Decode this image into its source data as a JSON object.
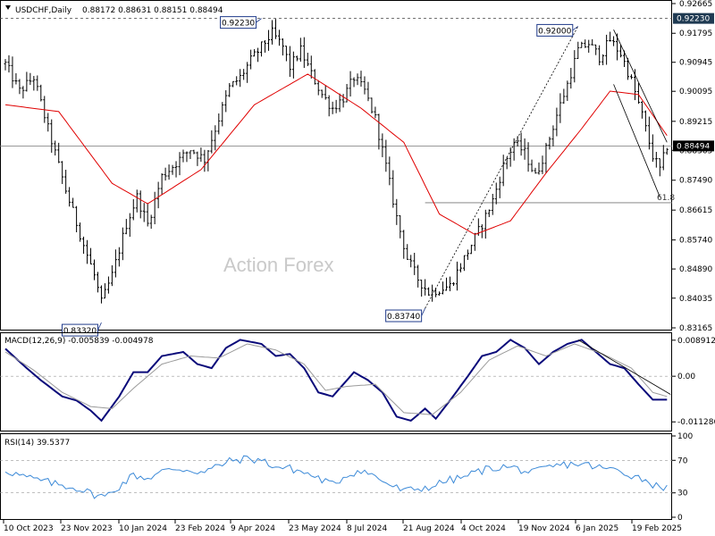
{
  "header": {
    "symbol": "USDCHF,Daily",
    "ohlc": "0.88172 0.88631 0.88151 0.88494"
  },
  "watermark": "Action Forex",
  "colors": {
    "bars": "#000000",
    "ma": "#e00000",
    "macd": "#0a0a7a",
    "signal": "#9a9a9a",
    "rsi": "#3c8ad8",
    "current_tag_bg": "#000000",
    "high_tag_bg": "#1f3a52"
  },
  "chart_data": [
    {
      "type": "candlestick",
      "title": "USDCHF,Daily",
      "ylim": [
        0.83165,
        0.92665
      ],
      "y_ticks": [
        "0.92665",
        "0.91795",
        "0.90945",
        "0.90095",
        "0.89215",
        "0.88365",
        "0.87490",
        "0.86615",
        "0.85740",
        "0.84890",
        "0.84035",
        "0.83165"
      ],
      "x_ticks": [
        "10 Oct 2023",
        "23 Nov 2023",
        "10 Jan 2024",
        "23 Feb 2024",
        "9 Apr 2024",
        "23 May 2024",
        "8 Jul 2024",
        "21 Aug 2024",
        "4 Oct 2024",
        "19 Nov 2024",
        "6 Jan 2025",
        "19 Feb 2025"
      ],
      "price_path": [
        [
          0,
          0.909
        ],
        [
          4,
          0.901
        ],
        [
          8,
          0.905
        ],
        [
          12,
          0.89
        ],
        [
          17,
          0.872
        ],
        [
          22,
          0.856
        ],
        [
          25,
          0.847
        ],
        [
          27,
          0.839
        ],
        [
          30,
          0.847
        ],
        [
          34,
          0.862
        ],
        [
          37,
          0.87
        ],
        [
          40,
          0.862
        ],
        [
          44,
          0.876
        ],
        [
          48,
          0.88
        ],
        [
          52,
          0.884
        ],
        [
          56,
          0.881
        ],
        [
          60,
          0.893
        ],
        [
          63,
          0.902
        ],
        [
          66,
          0.905
        ],
        [
          69,
          0.91
        ],
        [
          72,
          0.914
        ],
        [
          75,
          0.918
        ],
        [
          78,
          0.914
        ],
        [
          80,
          0.908
        ],
        [
          83,
          0.913
        ],
        [
          86,
          0.906
        ],
        [
          89,
          0.9
        ],
        [
          92,
          0.896
        ],
        [
          95,
          0.899
        ],
        [
          98,
          0.905
        ],
        [
          101,
          0.901
        ],
        [
          104,
          0.893
        ],
        [
          107,
          0.879
        ],
        [
          110,
          0.864
        ],
        [
          113,
          0.852
        ],
        [
          116,
          0.846
        ],
        [
          119,
          0.842
        ],
        [
          122,
          0.843
        ],
        [
          125,
          0.844
        ],
        [
          128,
          0.85
        ],
        [
          131,
          0.856
        ],
        [
          134,
          0.862
        ],
        [
          137,
          0.869
        ],
        [
          140,
          0.879
        ],
        [
          143,
          0.886
        ],
        [
          146,
          0.883
        ],
        [
          149,
          0.876
        ],
        [
          152,
          0.884
        ],
        [
          155,
          0.894
        ],
        [
          158,
          0.903
        ],
        [
          161,
          0.913
        ],
        [
          164,
          0.915
        ],
        [
          167,
          0.911
        ],
        [
          170,
          0.916
        ],
        [
          173,
          0.912
        ],
        [
          176,
          0.904
        ],
        [
          179,
          0.894
        ],
        [
          182,
          0.882
        ],
        [
          184,
          0.878
        ],
        [
          186,
          0.8849
        ]
      ],
      "total_bars": 187,
      "ma_path": [
        [
          0,
          0.897
        ],
        [
          15,
          0.895
        ],
        [
          30,
          0.874
        ],
        [
          40,
          0.868
        ],
        [
          55,
          0.878
        ],
        [
          70,
          0.897
        ],
        [
          85,
          0.906
        ],
        [
          100,
          0.896
        ],
        [
          112,
          0.886
        ],
        [
          122,
          0.865
        ],
        [
          132,
          0.859
        ],
        [
          142,
          0.863
        ],
        [
          152,
          0.877
        ],
        [
          162,
          0.89
        ],
        [
          170,
          0.901
        ],
        [
          178,
          0.9
        ],
        [
          186,
          0.888
        ]
      ],
      "annotations": [
        {
          "text": "0.92230",
          "bar": 72,
          "value": 0.9223
        },
        {
          "text": "0.83320",
          "bar": 27,
          "value": 0.8332
        },
        {
          "text": "0.83740",
          "bar": 118,
          "value": 0.8374
        },
        {
          "text": "0.92000",
          "bar": 161,
          "value": 0.92
        }
      ],
      "levels": [
        {
          "value": 0.9223,
          "style": "dashed",
          "tag": "0.92230"
        },
        {
          "value": 0.88494,
          "style": "solid",
          "tag": "0.88494"
        },
        {
          "value": 0.8683,
          "style": "solid",
          "label": "61.8"
        }
      ],
      "trendlines": [
        {
          "from": [
            118,
            0.8374
          ],
          "to": [
            161,
            0.92
          ],
          "style": "dotted"
        },
        {
          "from": [
            171,
            0.919
          ],
          "to": [
            186,
            0.886
          ],
          "style": "solid"
        },
        {
          "from": [
            171,
            0.903
          ],
          "to": [
            184,
            0.87
          ],
          "style": "solid"
        }
      ]
    },
    {
      "type": "line",
      "title": "MACD(12,26,9) -0.005839 -0.004978",
      "ylim": [
        -0.013,
        0.0102
      ],
      "y_ticks": [
        "0.008912",
        "0.00",
        "-0.011286"
      ],
      "series": [
        {
          "role": "macd",
          "points": [
            [
              0,
              0.0068
            ],
            [
              6,
              0.002
            ],
            [
              10,
              -0.001
            ],
            [
              16,
              -0.005
            ],
            [
              20,
              -0.006
            ],
            [
              24,
              -0.0085
            ],
            [
              27,
              -0.011
            ],
            [
              32,
              -0.005
            ],
            [
              36,
              0.001
            ],
            [
              40,
              0.001
            ],
            [
              44,
              0.005
            ],
            [
              50,
              0.006
            ],
            [
              54,
              0.003
            ],
            [
              58,
              0.002
            ],
            [
              62,
              0.007
            ],
            [
              66,
              0.009
            ],
            [
              72,
              0.008
            ],
            [
              76,
              0.005
            ],
            [
              80,
              0.0055
            ],
            [
              84,
              0.002
            ],
            [
              88,
              -0.004
            ],
            [
              92,
              -0.005
            ],
            [
              95,
              -0.002
            ],
            [
              98,
              0.001
            ],
            [
              102,
              -0.001
            ],
            [
              106,
              -0.004
            ],
            [
              110,
              -0.01
            ],
            [
              114,
              -0.011
            ],
            [
              118,
              -0.008
            ],
            [
              121,
              -0.0105
            ],
            [
              125,
              -0.006
            ],
            [
              130,
              0.0
            ],
            [
              134,
              0.005
            ],
            [
              138,
              0.006
            ],
            [
              142,
              0.009
            ],
            [
              146,
              0.007
            ],
            [
              150,
              0.003
            ],
            [
              154,
              0.006
            ],
            [
              158,
              0.008
            ],
            [
              162,
              0.009
            ],
            [
              166,
              0.006
            ],
            [
              170,
              0.003
            ],
            [
              174,
              0.002
            ],
            [
              178,
              -0.002
            ],
            [
              182,
              -0.0058
            ],
            [
              186,
              -0.0058
            ]
          ]
        },
        {
          "role": "signal",
          "points": [
            [
              0,
              0.006
            ],
            [
              8,
              0.0015
            ],
            [
              16,
              -0.004
            ],
            [
              24,
              -0.0075
            ],
            [
              30,
              -0.008
            ],
            [
              36,
              -0.003
            ],
            [
              44,
              0.003
            ],
            [
              52,
              0.005
            ],
            [
              60,
              0.0045
            ],
            [
              68,
              0.008
            ],
            [
              76,
              0.0065
            ],
            [
              84,
              0.003
            ],
            [
              90,
              -0.0035
            ],
            [
              96,
              -0.0025
            ],
            [
              104,
              -0.002
            ],
            [
              112,
              -0.009
            ],
            [
              120,
              -0.0095
            ],
            [
              128,
              -0.004
            ],
            [
              136,
              0.004
            ],
            [
              144,
              0.0075
            ],
            [
              152,
              0.005
            ],
            [
              160,
              0.008
            ],
            [
              168,
              0.0055
            ],
            [
              176,
              0.002
            ],
            [
              182,
              -0.004
            ],
            [
              186,
              -0.005
            ]
          ]
        }
      ],
      "trendline": {
        "from": [
          161,
          0.009
        ],
        "to": [
          187,
          -0.0045
        ]
      }
    },
    {
      "type": "line",
      "title": "RSI(14) 39.5377",
      "ylim": [
        0,
        100
      ],
      "y_ticks": [
        "100",
        "70",
        "30",
        "0"
      ],
      "guides": [
        70,
        30
      ],
      "series": [
        {
          "role": "rsi",
          "points": [
            [
              0,
              58
            ],
            [
              5,
              50
            ],
            [
              10,
              45
            ],
            [
              15,
              40
            ],
            [
              20,
              36
            ],
            [
              25,
              28
            ],
            [
              28,
              25
            ],
            [
              32,
              38
            ],
            [
              36,
              52
            ],
            [
              40,
              48
            ],
            [
              44,
              56
            ],
            [
              48,
              60
            ],
            [
              52,
              58
            ],
            [
              56,
              55
            ],
            [
              60,
              64
            ],
            [
              64,
              70
            ],
            [
              68,
              72
            ],
            [
              72,
              70
            ],
            [
              76,
              62
            ],
            [
              80,
              60
            ],
            [
              84,
              55
            ],
            [
              88,
              48
            ],
            [
              92,
              40
            ],
            [
              96,
              52
            ],
            [
              100,
              58
            ],
            [
              104,
              50
            ],
            [
              108,
              40
            ],
            [
              112,
              32
            ],
            [
              116,
              35
            ],
            [
              120,
              38
            ],
            [
              124,
              45
            ],
            [
              128,
              48
            ],
            [
              132,
              55
            ],
            [
              136,
              60
            ],
            [
              140,
              62
            ],
            [
              144,
              60
            ],
            [
              148,
              54
            ],
            [
              152,
              60
            ],
            [
              156,
              64
            ],
            [
              160,
              66
            ],
            [
              164,
              64
            ],
            [
              168,
              60
            ],
            [
              172,
              58
            ],
            [
              176,
              52
            ],
            [
              180,
              46
            ],
            [
              184,
              36
            ],
            [
              186,
              39.5
            ]
          ]
        }
      ]
    }
  ]
}
